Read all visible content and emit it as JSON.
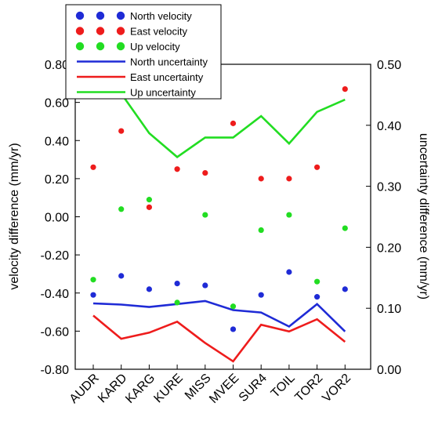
{
  "chart_data": {
    "type": "line+scatter (dual y-axis)",
    "categories": [
      "AUDR",
      "KARD",
      "KARG",
      "KURE",
      "MISS",
      "MVEE",
      "SUR4",
      "TOIL",
      "TOR2",
      "VOR2"
    ],
    "ylabel": "velocity difference (mm/yr)",
    "y2label": "uncertainty difference (mm/yr)",
    "ylim": [
      -0.8,
      0.8
    ],
    "y2lim": [
      0.0,
      0.5
    ],
    "yticks": [
      "-0.80",
      "-0.60",
      "-0.40",
      "-0.20",
      "0.00",
      "0.20",
      "0.40",
      "0.60",
      "0.80"
    ],
    "y2ticks": [
      "0.00",
      "0.10",
      "0.20",
      "0.30",
      "0.40",
      "0.50"
    ],
    "grid": false,
    "legend_position": "top-left",
    "scatter_series": [
      {
        "name": "North velocity",
        "color": "#1f2bd6",
        "axis": "left",
        "values": [
          -0.41,
          -0.31,
          -0.38,
          -0.35,
          -0.36,
          -0.59,
          -0.41,
          -0.29,
          -0.42,
          -0.38
        ]
      },
      {
        "name": "East velocity",
        "color": "#ee1c1c",
        "axis": "left",
        "values": [
          0.26,
          0.45,
          0.05,
          0.25,
          0.23,
          0.49,
          0.2,
          0.2,
          0.26,
          0.67
        ]
      },
      {
        "name": "Up velocity",
        "color": "#22dd22",
        "axis": "left",
        "values": [
          -0.33,
          0.04,
          0.09,
          -0.45,
          0.01,
          -0.47,
          -0.07,
          0.01,
          -0.34,
          -0.06
        ]
      }
    ],
    "line_series": [
      {
        "name": "North uncertainty",
        "color": "#1f2bd6",
        "axis": "right",
        "values": [
          0.108,
          0.106,
          0.102,
          0.107,
          0.112,
          0.097,
          0.093,
          0.07,
          0.107,
          0.062
        ]
      },
      {
        "name": "East uncertainty",
        "color": "#ee1c1c",
        "axis": "right",
        "values": [
          0.088,
          0.05,
          0.06,
          0.078,
          0.043,
          0.013,
          0.073,
          0.062,
          0.082,
          0.045
        ]
      },
      {
        "name": "Up uncertainty",
        "color": "#22dd22",
        "axis": "right",
        "values": [
          0.447,
          0.452,
          0.387,
          0.348,
          0.38,
          0.38,
          0.415,
          0.37,
          0.422,
          0.442
        ]
      }
    ]
  }
}
